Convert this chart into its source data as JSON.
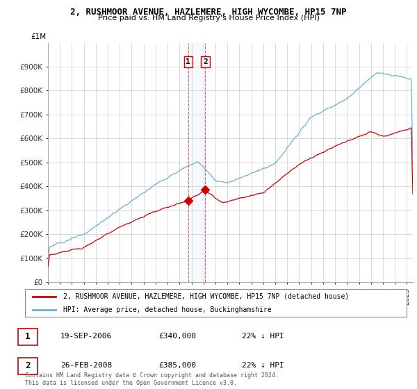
{
  "title": "2, RUSHMOOR AVENUE, HAZLEMERE, HIGH WYCOMBE, HP15 7NP",
  "subtitle": "Price paid vs. HM Land Registry's House Price Index (HPI)",
  "xlim_start": 1995.0,
  "xlim_end": 2025.5,
  "ylim": [
    0,
    1000000
  ],
  "yticks": [
    0,
    100000,
    200000,
    300000,
    400000,
    500000,
    600000,
    700000,
    800000,
    900000
  ],
  "ytick_labels": [
    "£0",
    "£100K",
    "£200K",
    "£300K",
    "£400K",
    "£500K",
    "£600K",
    "£700K",
    "£800K",
    "£900K"
  ],
  "ytick_top_label": "£1M",
  "sale1_date": 2006.72,
  "sale1_price": 340000,
  "sale2_date": 2008.15,
  "sale2_price": 385000,
  "hpi_color": "#6baed6",
  "price_color": "#cc0000",
  "span_color": "#ddeeff",
  "annotation_box_facecolor": "#fff0f0",
  "annotation_border_color": "#cc0000",
  "legend_entry1": "2, RUSHMOOR AVENUE, HAZLEMERE, HIGH WYCOMBE, HP15 7NP (detached house)",
  "legend_entry2": "HPI: Average price, detached house, Buckinghamshire",
  "table_row1": [
    "1",
    "19-SEP-2006",
    "£340,000",
    "22% ↓ HPI"
  ],
  "table_row2": [
    "2",
    "26-FEB-2008",
    "£385,000",
    "22% ↓ HPI"
  ],
  "footer": "Contains HM Land Registry data © Crown copyright and database right 2024.\nThis data is licensed under the Open Government Licence v3.0.",
  "background_color": "#ffffff"
}
